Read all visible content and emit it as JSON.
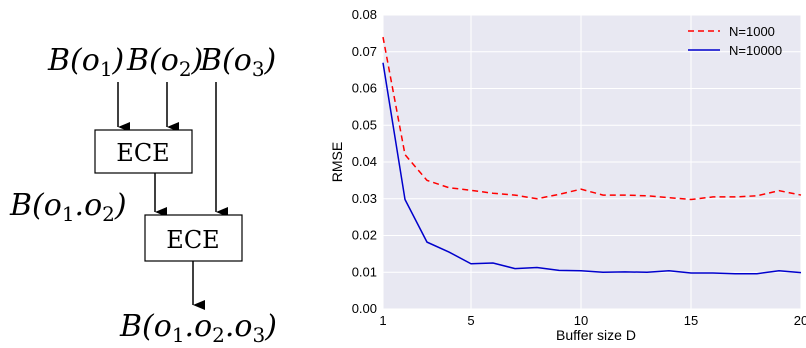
{
  "diagram": {
    "input_labels": [
      "B(o1)",
      "B(o2)",
      "B(o3)"
    ],
    "box1_label": "ECE",
    "box2_label": "ECE",
    "intermediate_label": "B(o1.o2)",
    "output_label": "B(o1.o2.o3)"
  },
  "chart_data": {
    "type": "line",
    "title": "",
    "xlabel": "Buffer size D",
    "ylabel": "RMSE",
    "xlim": [
      1,
      20
    ],
    "ylim": [
      0,
      0.08
    ],
    "xticks": [
      1,
      5,
      10,
      15,
      20
    ],
    "yticks": [
      0.0,
      0.01,
      0.02,
      0.03,
      0.04,
      0.05,
      0.06,
      0.07,
      0.08
    ],
    "ytick_labels": [
      "0.00",
      "0.01",
      "0.02",
      "0.03",
      "0.04",
      "0.05",
      "0.06",
      "0.07",
      "0.08"
    ],
    "grid": true,
    "background": "#e8e8f2",
    "legend_position": "top-right",
    "x": [
      1,
      2,
      3,
      4,
      5,
      6,
      7,
      8,
      9,
      10,
      11,
      12,
      13,
      14,
      15,
      16,
      17,
      18,
      19,
      20
    ],
    "series": [
      {
        "name": "N=1000",
        "color": "#ff0000",
        "dash": "dashed",
        "values": [
          0.074,
          0.042,
          0.035,
          0.033,
          0.0323,
          0.0315,
          0.031,
          0.03,
          0.0312,
          0.0326,
          0.031,
          0.031,
          0.0308,
          0.0303,
          0.0298,
          0.0305,
          0.0305,
          0.0308,
          0.0322,
          0.031
        ]
      },
      {
        "name": "N=10000",
        "color": "#0000cc",
        "dash": "solid",
        "values": [
          0.067,
          0.0298,
          0.0182,
          0.0155,
          0.0123,
          0.0125,
          0.011,
          0.0113,
          0.0105,
          0.0104,
          0.01,
          0.0101,
          0.01,
          0.0104,
          0.0098,
          0.0098,
          0.0096,
          0.0096,
          0.0104,
          0.0099
        ]
      }
    ]
  }
}
